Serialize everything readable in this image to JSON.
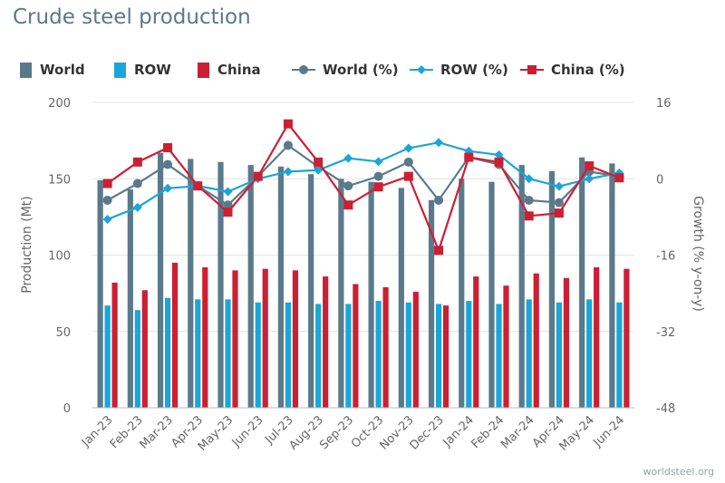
{
  "title": "Crude steel production",
  "footer": "worldsteel.org",
  "legend": [
    {
      "label": "World",
      "kind": "bar",
      "color": "#5a7a8c"
    },
    {
      "label": "ROW",
      "kind": "bar",
      "color": "#1aa6d9"
    },
    {
      "label": "China",
      "kind": "bar",
      "color": "#cc1f33"
    },
    {
      "label": "World (%)",
      "kind": "line-circle",
      "color": "#5a7a8c"
    },
    {
      "label": "ROW (%)",
      "kind": "line-diamond",
      "color": "#1aa6d9"
    },
    {
      "label": "China (%)",
      "kind": "line-square",
      "color": "#cc1f33"
    }
  ],
  "chart_data": {
    "type": "bar",
    "categories": [
      "Jan-23",
      "Feb-23",
      "Mar-23",
      "Apr-23",
      "May-23",
      "Jun-23",
      "Jul-23",
      "Aug-23",
      "Sep-23",
      "Oct-23",
      "Nov-23",
      "Dec-23",
      "Jan-24",
      "Feb-24",
      "Mar-24",
      "Apr-24",
      "May-24",
      "Jun-24"
    ],
    "ylabel": "Production (Mt)",
    "y2label": "Growth (% y-on-y)",
    "ylim": [
      0,
      200
    ],
    "yticks": [
      0,
      50,
      100,
      150,
      200
    ],
    "y2lim": [
      -48,
      16
    ],
    "y2ticks": [
      -48,
      -32,
      -16,
      0,
      16
    ],
    "series": [
      {
        "name": "World",
        "axis": "left",
        "kind": "bar",
        "color": "#5a7a8c",
        "values": [
          149,
          143,
          167,
          163,
          161,
          159,
          158,
          153,
          150,
          148,
          144,
          136,
          150,
          148,
          159,
          155,
          164,
          160
        ]
      },
      {
        "name": "ROW",
        "axis": "left",
        "kind": "bar",
        "color": "#1aa6d9",
        "values": [
          67,
          64,
          72,
          71,
          71,
          69,
          69,
          68,
          68,
          70,
          69,
          68,
          70,
          68,
          71,
          69,
          71,
          69
        ]
      },
      {
        "name": "China",
        "axis": "left",
        "kind": "bar",
        "color": "#cc1f33",
        "values": [
          82,
          77,
          95,
          92,
          90,
          91,
          90,
          86,
          81,
          79,
          76,
          67,
          86,
          80,
          88,
          85,
          92,
          91
        ]
      },
      {
        "name": "World (%)",
        "axis": "right",
        "kind": "line",
        "marker": "circle",
        "color": "#5a7a8c",
        "values": [
          -4.5,
          -1,
          3,
          -1.5,
          -5.5,
          0.5,
          7,
          2.5,
          -1.5,
          0.5,
          3.5,
          -4.5,
          4.5,
          3,
          -4.5,
          -5,
          1.5,
          0.5
        ]
      },
      {
        "name": "ROW (%)",
        "axis": "right",
        "kind": "line",
        "marker": "diamond",
        "color": "#1aa6d9",
        "values": [
          -8.5,
          -6,
          -2,
          -1.5,
          -2.7,
          0,
          1.5,
          1.8,
          4.3,
          3.6,
          6.4,
          7.6,
          5.8,
          5,
          0,
          -1.6,
          0,
          1.2
        ]
      },
      {
        "name": "China (%)",
        "axis": "right",
        "kind": "line",
        "marker": "square",
        "color": "#cc1f33",
        "values": [
          -1,
          3.5,
          6.5,
          -1.5,
          -7,
          0.5,
          11.5,
          3.5,
          -5.5,
          -1.7,
          0.5,
          -15,
          4.5,
          3.5,
          -7.8,
          -7.2,
          2.7,
          0.2
        ]
      }
    ]
  }
}
